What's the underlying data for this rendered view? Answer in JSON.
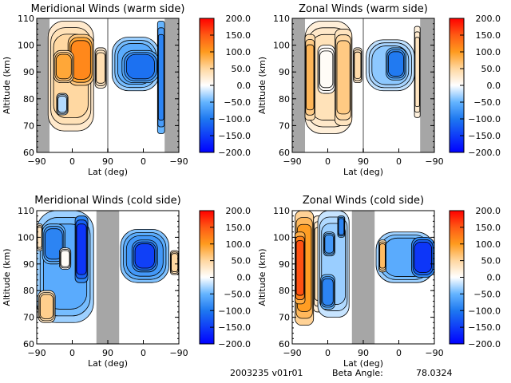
{
  "chart_data": [
    {
      "type": "heatmap",
      "id": "meridional-warm",
      "title": "Meridional Winds (warm side)",
      "xlabel": "Lat (deg)",
      "ylabel": "Altitude (km)",
      "xtick_labels": [
        "-90",
        "0",
        "90",
        "0",
        "-90"
      ],
      "yticks": [
        60,
        70,
        80,
        90,
        100,
        110
      ],
      "ylim": [
        60,
        110
      ],
      "colorbar": {
        "ticks": [
          "200.0",
          "150.0",
          "100.0",
          "50.0",
          "0.0",
          "-50.0",
          "-100.0",
          "-150.0",
          "-200.0"
        ],
        "range": [
          -200,
          200
        ]
      },
      "gaps": [
        {
          "from": 0,
          "to": 0.09
        },
        {
          "from": 0.9,
          "to": 1.0
        }
      ],
      "divider": 0.5,
      "blobs": [
        {
          "x0": 0.08,
          "x1": 0.4,
          "y0": 68,
          "y1": 109,
          "v": 60
        },
        {
          "x0": 0.22,
          "x1": 0.4,
          "y0": 85,
          "y1": 104,
          "v": 140
        },
        {
          "x0": 0.12,
          "x1": 0.26,
          "y0": 86,
          "y1": 98,
          "v": 110
        },
        {
          "x0": 0.14,
          "x1": 0.22,
          "y0": 74,
          "y1": 82,
          "v": -30
        },
        {
          "x0": 0.41,
          "x1": 0.49,
          "y0": 84,
          "y1": 99,
          "v": 50
        },
        {
          "x0": 0.53,
          "x1": 0.86,
          "y0": 83,
          "y1": 103,
          "v": -70
        },
        {
          "x0": 0.6,
          "x1": 0.86,
          "y0": 86,
          "y1": 98,
          "v": -130
        },
        {
          "x0": 0.85,
          "x1": 0.9,
          "y0": 67,
          "y1": 109,
          "v": -110
        }
      ]
    },
    {
      "type": "heatmap",
      "id": "zonal-warm",
      "title": "Zonal Winds (warm side)",
      "xlabel": "Lat (deg)",
      "ylabel": "Altitude (km)",
      "xtick_labels": [
        "-90",
        "0",
        "90",
        "0",
        "-90"
      ],
      "yticks": [
        60,
        70,
        80,
        90,
        100,
        110
      ],
      "ylim": [
        60,
        110
      ],
      "colorbar": {
        "ticks": [
          "200.0",
          "150.0",
          "100.0",
          "50.0",
          "0.0",
          "-50.0",
          "-100.0",
          "-150.0",
          "-200.0"
        ],
        "range": [
          -200,
          200
        ]
      },
      "gaps": [
        {
          "from": 0,
          "to": 0.09
        },
        {
          "from": 0.9,
          "to": 1.0
        }
      ],
      "divider": 0.5,
      "blobs": [
        {
          "x0": 0.09,
          "x1": 0.42,
          "y0": 67,
          "y1": 109,
          "v": 45
        },
        {
          "x0": 0.09,
          "x1": 0.16,
          "y0": 72,
          "y1": 104,
          "v": 95
        },
        {
          "x0": 0.3,
          "x1": 0.42,
          "y0": 70,
          "y1": 106,
          "v": 75
        },
        {
          "x0": 0.18,
          "x1": 0.3,
          "y0": 82,
          "y1": 100,
          "v": 5
        },
        {
          "x0": 0.43,
          "x1": 0.49,
          "y0": 86,
          "y1": 99,
          "v": 55
        },
        {
          "x0": 0.52,
          "x1": 0.86,
          "y0": 83,
          "y1": 102,
          "v": -45
        },
        {
          "x0": 0.66,
          "x1": 0.8,
          "y0": 87,
          "y1": 99,
          "v": -120
        },
        {
          "x0": 0.86,
          "x1": 0.9,
          "y0": 73,
          "y1": 107,
          "v": 40
        }
      ]
    },
    {
      "type": "heatmap",
      "id": "meridional-cold",
      "title": "Meridional Winds (cold side)",
      "xlabel": "Lat (deg)",
      "ylabel": "Altitude (km)",
      "xtick_labels": [
        "-90",
        "0",
        "90",
        "0",
        "-90"
      ],
      "yticks": [
        60,
        70,
        80,
        90,
        100,
        110
      ],
      "ylim": [
        60,
        110
      ],
      "colorbar": {
        "ticks": [
          "200.0",
          "150.0",
          "100.0",
          "50.0",
          "0.0",
          "-50.0",
          "-100.0",
          "-150.0",
          "-200.0"
        ],
        "range": [
          -200,
          200
        ]
      },
      "gaps": [
        {
          "from": 0.42,
          "to": 0.58
        }
      ],
      "blobs": [
        {
          "x0": 0.0,
          "x1": 0.4,
          "y0": 68,
          "y1": 110,
          "v": -70
        },
        {
          "x0": 0.27,
          "x1": 0.36,
          "y0": 83,
          "y1": 108,
          "v": -190
        },
        {
          "x0": 0.04,
          "x1": 0.2,
          "y0": 90,
          "y1": 105,
          "v": -110
        },
        {
          "x0": 0.16,
          "x1": 0.24,
          "y0": 88,
          "y1": 96,
          "v": 5
        },
        {
          "x0": 0.01,
          "x1": 0.13,
          "y0": 68,
          "y1": 80,
          "v": 70
        },
        {
          "x0": 0.0,
          "x1": 0.04,
          "y0": 95,
          "y1": 105,
          "v": 40
        },
        {
          "x0": 0.59,
          "x1": 0.93,
          "y0": 83,
          "y1": 103,
          "v": -90
        },
        {
          "x0": 0.67,
          "x1": 0.85,
          "y0": 87,
          "y1": 99,
          "v": -180
        },
        {
          "x0": 0.94,
          "x1": 1.0,
          "y0": 86,
          "y1": 95,
          "v": 60
        }
      ]
    },
    {
      "type": "heatmap",
      "id": "zonal-cold",
      "title": "Zonal Winds (cold side)",
      "xlabel": "Lat (deg)",
      "ylabel": "Altitude (km)",
      "xtick_labels": [
        "-90",
        "0",
        "90",
        "0",
        "-90"
      ],
      "yticks": [
        60,
        70,
        80,
        90,
        100,
        110
      ],
      "ylim": [
        60,
        110
      ],
      "colorbar": {
        "ticks": [
          "200.0",
          "150.0",
          "100.0",
          "50.0",
          "0.0",
          "-50.0",
          "-100.0",
          "-150.0",
          "-200.0"
        ],
        "range": [
          -200,
          200
        ]
      },
      "gaps": [
        {
          "from": 0.42,
          "to": 0.58
        }
      ],
      "blobs": [
        {
          "x0": 0.02,
          "x1": 0.15,
          "y0": 67,
          "y1": 110,
          "v": 120
        },
        {
          "x0": 0.02,
          "x1": 0.09,
          "y0": 75,
          "y1": 102,
          "v": 190
        },
        {
          "x0": 0.15,
          "x1": 0.22,
          "y0": 72,
          "y1": 108,
          "v": 45
        },
        {
          "x0": 0.18,
          "x1": 0.4,
          "y0": 70,
          "y1": 110,
          "v": -40
        },
        {
          "x0": 0.2,
          "x1": 0.3,
          "y0": 73,
          "y1": 86,
          "v": -110
        },
        {
          "x0": 0.22,
          "x1": 0.3,
          "y0": 93,
          "y1": 102,
          "v": -90
        },
        {
          "x0": 0.32,
          "x1": 0.37,
          "y0": 100,
          "y1": 108,
          "v": -110
        },
        {
          "x0": 0.59,
          "x1": 1.0,
          "y0": 83,
          "y1": 102,
          "v": -70
        },
        {
          "x0": 0.61,
          "x1": 0.66,
          "y0": 87,
          "y1": 99,
          "v": 90
        },
        {
          "x0": 0.84,
          "x1": 1.0,
          "y0": 85,
          "y1": 100,
          "v": -190
        }
      ]
    }
  ],
  "footer": {
    "date_version": "2003235 v01r01",
    "beta_label": "Beta Angle:",
    "beta_value": "78.0324"
  }
}
